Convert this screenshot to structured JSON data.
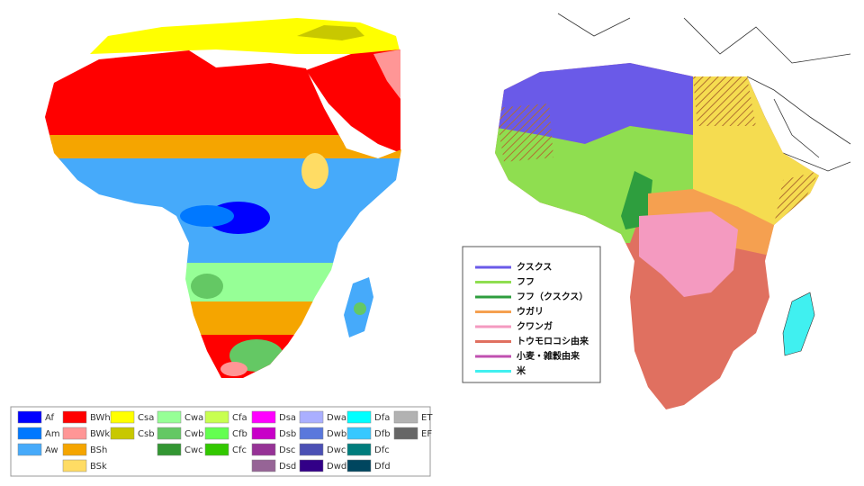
{
  "climate_legend": {
    "columns": [
      [
        {
          "code": "Af",
          "color": "#0000ff"
        },
        {
          "code": "Am",
          "color": "#0078ff"
        },
        {
          "code": "Aw",
          "color": "#46aafa"
        }
      ],
      [
        {
          "code": "BWh",
          "color": "#ff0000"
        },
        {
          "code": "BWk",
          "color": "#ff9696"
        },
        {
          "code": "BSh",
          "color": "#f5a500"
        },
        {
          "code": "BSk",
          "color": "#ffdc64"
        }
      ],
      [
        {
          "code": "Csa",
          "color": "#ffff00"
        },
        {
          "code": "Csb",
          "color": "#c8c800"
        }
      ],
      [
        {
          "code": "Cwa",
          "color": "#96ff96"
        },
        {
          "code": "Cwb",
          "color": "#64c864"
        },
        {
          "code": "Cwc",
          "color": "#329632"
        }
      ],
      [
        {
          "code": "Cfa",
          "color": "#c8ff50"
        },
        {
          "code": "Cfb",
          "color": "#64ff50"
        },
        {
          "code": "Cfc",
          "color": "#32c800"
        }
      ],
      [
        {
          "code": "Dsa",
          "color": "#ff00ff"
        },
        {
          "code": "Dsb",
          "color": "#c800c8"
        },
        {
          "code": "Dsc",
          "color": "#963296"
        },
        {
          "code": "Dsd",
          "color": "#966496"
        }
      ],
      [
        {
          "code": "Dwa",
          "color": "#aaafff"
        },
        {
          "code": "Dwb",
          "color": "#5a78dc"
        },
        {
          "code": "Dwc",
          "color": "#4b50b4"
        },
        {
          "code": "Dwd",
          "color": "#320087"
        }
      ],
      [
        {
          "code": "Dfa",
          "color": "#00ffff"
        },
        {
          "code": "Dfb",
          "color": "#37c8ff"
        },
        {
          "code": "Dfc",
          "color": "#007d7d"
        },
        {
          "code": "Dfd",
          "color": "#00465f"
        }
      ],
      [
        {
          "code": "ET",
          "color": "#b2b2b2"
        },
        {
          "code": "EF",
          "color": "#666666"
        }
      ]
    ]
  },
  "food_legend": {
    "items": [
      {
        "label": "クスクス",
        "color": "#6a5ae8"
      },
      {
        "label": "フフ",
        "color": "#8fde50"
      },
      {
        "label": "フフ（クスクス）",
        "color": "#2e9e3e"
      },
      {
        "label": "ウガリ",
        "color": "#f5a050"
      },
      {
        "label": "クワンガ",
        "color": "#f49ac0"
      },
      {
        "label": "トウモロコシ由来",
        "color": "#e07060"
      },
      {
        "label": "小麦・雑穀由来",
        "color": "#c050b0"
      },
      {
        "label": "米",
        "color": "#40f0f0"
      }
    ]
  }
}
